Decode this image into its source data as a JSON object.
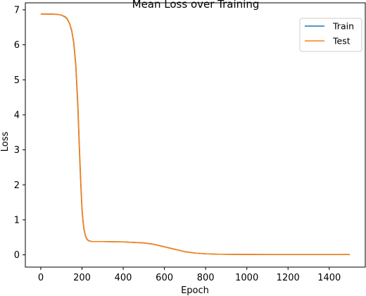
{
  "chart_data": {
    "type": "line",
    "title": "Mean Loss over Training",
    "xlabel": "Epoch",
    "ylabel": "Loss",
    "xlim": [
      -75,
      1575
    ],
    "ylim": [
      -0.35,
      7.2
    ],
    "xticks": [
      0,
      200,
      400,
      600,
      800,
      1000,
      1200,
      1400
    ],
    "yticks": [
      0,
      1,
      2,
      3,
      4,
      5,
      6,
      7
    ],
    "grid": false,
    "legend_position": "top-right",
    "series": [
      {
        "name": "Train",
        "color": "#1f77b4",
        "x": [
          0,
          50,
          80,
          100,
          120,
          130,
          140,
          150,
          160,
          170,
          180,
          185,
          190,
          195,
          200,
          205,
          210,
          215,
          220,
          225,
          230,
          235,
          240,
          250,
          260,
          300,
          400,
          500,
          550,
          600,
          650,
          700,
          750,
          800,
          850,
          900,
          1000,
          1100,
          1200,
          1300,
          1400,
          1500
        ],
        "y": [
          6.88,
          6.88,
          6.87,
          6.85,
          6.79,
          6.72,
          6.6,
          6.4,
          6.05,
          5.4,
          4.2,
          3.4,
          2.6,
          1.9,
          1.3,
          0.95,
          0.72,
          0.58,
          0.49,
          0.44,
          0.41,
          0.4,
          0.39,
          0.38,
          0.38,
          0.38,
          0.37,
          0.34,
          0.3,
          0.23,
          0.16,
          0.09,
          0.05,
          0.03,
          0.02,
          0.015,
          0.012,
          0.01,
          0.01,
          0.01,
          0.01,
          0.01
        ]
      },
      {
        "name": "Test",
        "color": "#ff7f0e",
        "x": [
          0,
          50,
          80,
          100,
          120,
          130,
          140,
          150,
          160,
          170,
          180,
          185,
          190,
          195,
          200,
          205,
          210,
          215,
          220,
          225,
          230,
          235,
          240,
          250,
          260,
          300,
          400,
          500,
          550,
          600,
          650,
          700,
          750,
          800,
          850,
          900,
          1000,
          1100,
          1200,
          1300,
          1400,
          1500
        ],
        "y": [
          6.88,
          6.88,
          6.87,
          6.85,
          6.8,
          6.73,
          6.61,
          6.42,
          6.08,
          5.45,
          4.3,
          3.5,
          2.7,
          2.0,
          1.35,
          0.98,
          0.74,
          0.59,
          0.5,
          0.45,
          0.42,
          0.4,
          0.39,
          0.38,
          0.38,
          0.38,
          0.37,
          0.34,
          0.3,
          0.23,
          0.16,
          0.09,
          0.05,
          0.03,
          0.02,
          0.015,
          0.012,
          0.01,
          0.01,
          0.01,
          0.01,
          0.01
        ]
      }
    ]
  }
}
